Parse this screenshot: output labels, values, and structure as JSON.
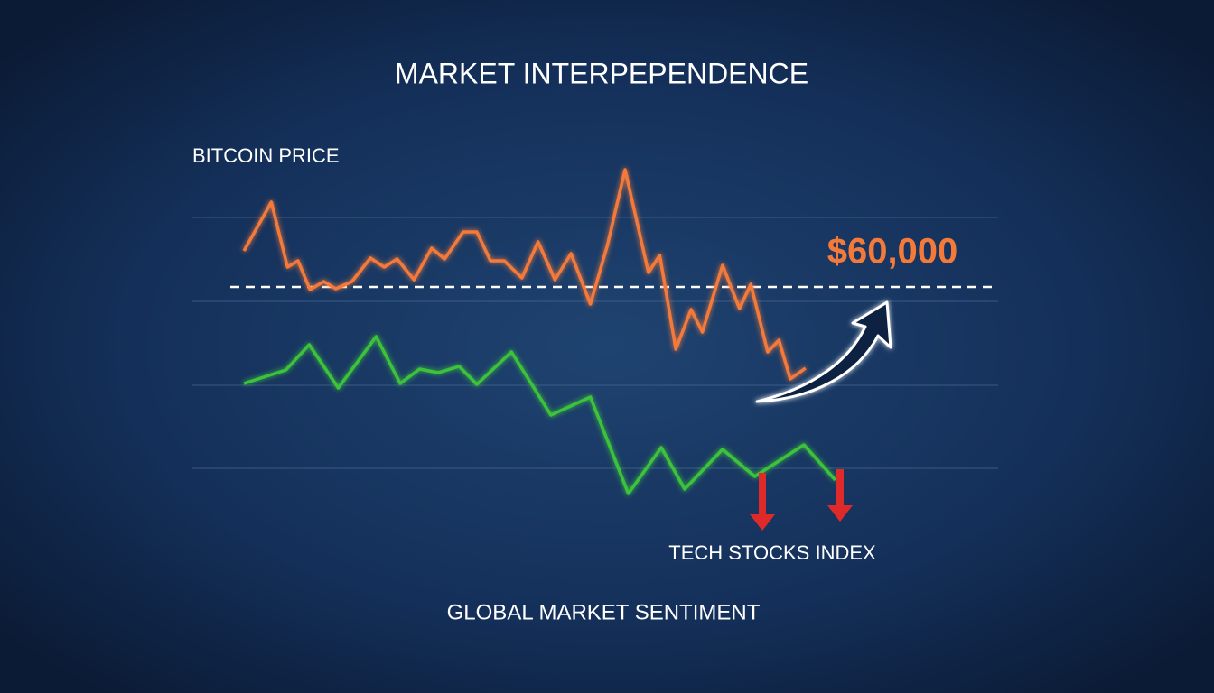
{
  "chart_data": {
    "type": "line",
    "title": "MARKET INTERPEPENDENCE",
    "xlabel": "GLOBAL MARKET SENTIMENT",
    "xlim": [
      0,
      100
    ],
    "ylim": [
      35800,
      75800
    ],
    "gridlines": [
      67700,
      58400,
      49100,
      39900
    ],
    "reference_line": {
      "value": 60000,
      "label": "$60,000",
      "color": "#f47a3a"
    },
    "series": [
      {
        "name": "BITCOIN PRICE",
        "color": "#f47a3a",
        "x": [
          6.4,
          9.8,
          11.8,
          13.1,
          14.6,
          16.3,
          17.8,
          19.8,
          22.1,
          23.8,
          25.4,
          27.5,
          29.7,
          31.3,
          33.6,
          35.3,
          37.0,
          38.7,
          40.9,
          42.9,
          45.0,
          47.0,
          49.4,
          51.5,
          53.7,
          56.6,
          58.0,
          60.0,
          61.9,
          63.3,
          65.8,
          67.9,
          69.3,
          71.4,
          72.8,
          74.2,
          76.1
        ],
        "values": [
          64000,
          69400,
          62200,
          62900,
          59700,
          60600,
          59800,
          60600,
          63200,
          62200,
          63100,
          60800,
          64300,
          63100,
          66100,
          66100,
          62900,
          62900,
          61000,
          65000,
          60800,
          63700,
          58100,
          64600,
          73000,
          61600,
          63500,
          53100,
          57500,
          55000,
          62400,
          57600,
          60300,
          52800,
          54100,
          49800,
          51000
        ]
      },
      {
        "name": "TECH STOCKS INDEX",
        "color": "#3cc23a",
        "x": [
          6.4,
          11.6,
          14.5,
          18.1,
          22.8,
          25.8,
          28.2,
          30.5,
          33.1,
          35.3,
          39.6,
          44.5,
          49.4,
          54.1,
          58.2,
          61.1,
          65.8,
          69.8,
          75.9,
          79.8
        ],
        "values": [
          49300,
          50800,
          53600,
          48800,
          54500,
          49300,
          50900,
          50500,
          51200,
          49200,
          52800,
          45800,
          47800,
          37100,
          42200,
          37600,
          42000,
          39000,
          42500,
          38600
        ]
      }
    ]
  }
}
